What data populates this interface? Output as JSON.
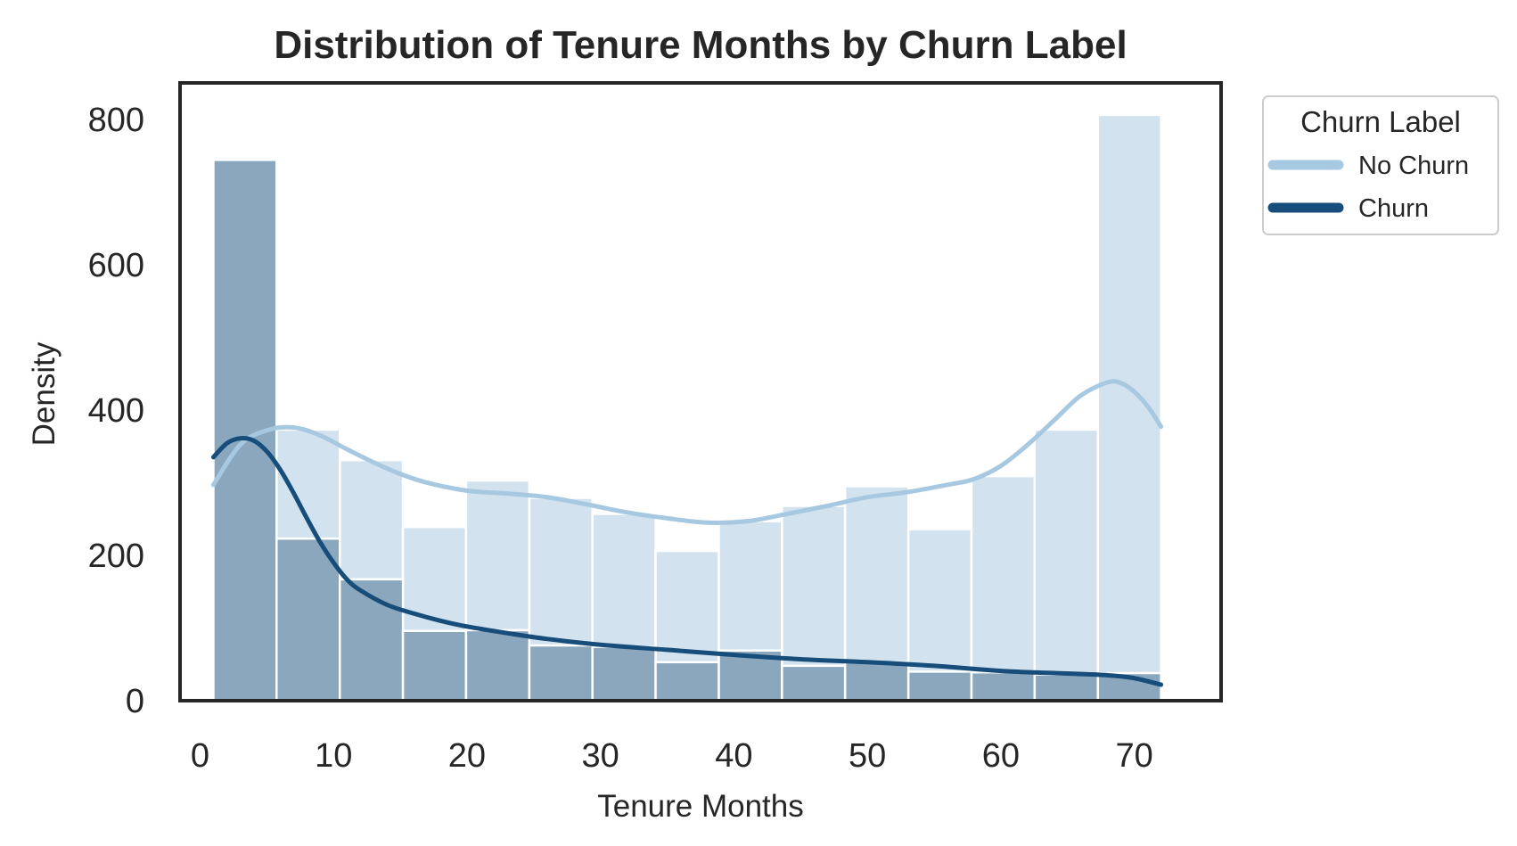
{
  "chart_data": {
    "type": "bar",
    "subtype": "overlaid-histogram-with-kde",
    "title": "Distribution of Tenure Months by Churn Label",
    "xlabel": "Tenure Months",
    "ylabel": "Density",
    "xlim": [
      -1.5,
      76.5
    ],
    "ylim": [
      0,
      850
    ],
    "xticks": [
      0,
      10,
      20,
      30,
      40,
      50,
      60,
      70
    ],
    "yticks": [
      0,
      200,
      400,
      600,
      800
    ],
    "grid": false,
    "bin_edges": [
      1,
      5.73,
      10.47,
      15.2,
      19.93,
      24.67,
      29.4,
      34.13,
      38.87,
      43.6,
      48.33,
      53.07,
      57.8,
      62.53,
      67.27,
      72
    ],
    "legend": {
      "title": "Churn Label",
      "placement": "outside-top-right"
    },
    "series": [
      {
        "name": "No Churn",
        "color": "#a6c8e0",
        "fill": "#d3e2ef",
        "values": [
          620,
          373,
          331,
          239,
          303,
          279,
          257,
          206,
          247,
          268,
          295,
          236,
          309,
          373,
          806
        ],
        "kde": {
          "x": [
            1,
            3,
            5,
            7,
            9,
            11,
            13,
            15,
            17,
            20,
            23,
            26,
            29,
            32,
            35,
            38,
            41,
            44,
            47,
            50,
            53,
            56,
            58,
            60,
            62,
            64,
            66,
            68,
            69,
            70,
            71,
            72
          ],
          "y": [
            297,
            352,
            372,
            376,
            365,
            346,
            328,
            312,
            300,
            289,
            285,
            280,
            270,
            259,
            251,
            245,
            247,
            257,
            268,
            280,
            287,
            297,
            305,
            323,
            352,
            386,
            420,
            438,
            437,
            425,
            405,
            377
          ]
        }
      },
      {
        "name": "Churn",
        "color": "#174d7a",
        "fill": "#8aa7bd",
        "values": [
          744,
          223,
          167,
          96,
          97,
          76,
          74,
          53,
          69,
          48,
          53,
          40,
          39,
          36,
          38
        ],
        "kde": {
          "x": [
            1,
            2,
            3,
            4,
            5,
            6,
            7,
            8,
            9,
            10,
            11,
            12,
            14,
            16,
            18,
            20,
            23,
            26,
            30,
            35,
            40,
            45,
            50,
            55,
            60,
            64,
            68,
            70,
            72
          ],
          "y": [
            335,
            354,
            361,
            358,
            343,
            318,
            286,
            251,
            218,
            190,
            167,
            152,
            132,
            120,
            110,
            102,
            93,
            85,
            77,
            70,
            63,
            57,
            53,
            48,
            41,
            38,
            35,
            31,
            22
          ]
        }
      }
    ]
  }
}
